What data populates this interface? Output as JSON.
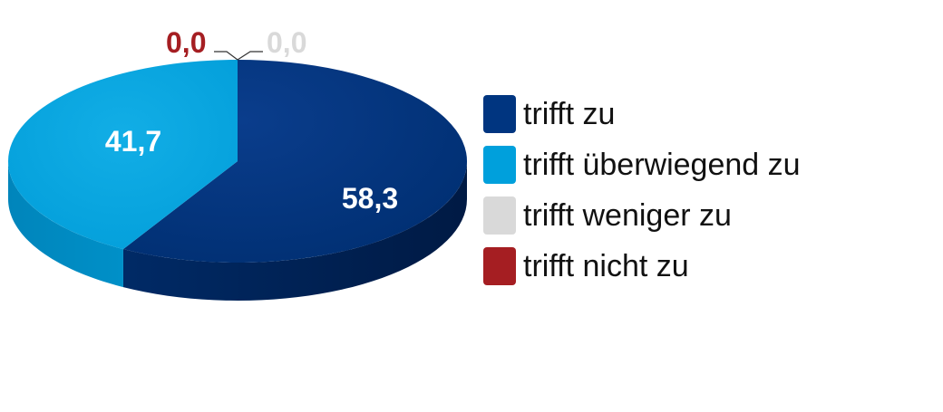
{
  "chart_data": {
    "type": "pie",
    "title": "",
    "categories": [
      "trifft zu",
      "trifft überwiegend zu",
      "trifft weniger zu",
      "trifft nicht zu"
    ],
    "values": [
      58.3,
      41.7,
      0.0,
      0.0
    ],
    "value_labels": [
      "58,3",
      "41,7",
      "0,0",
      "0,0"
    ],
    "colors": [
      "#003580",
      "#00a0dc",
      "#d9d9d9",
      "#a51e22"
    ],
    "style": "3d",
    "legend_position": "right"
  }
}
